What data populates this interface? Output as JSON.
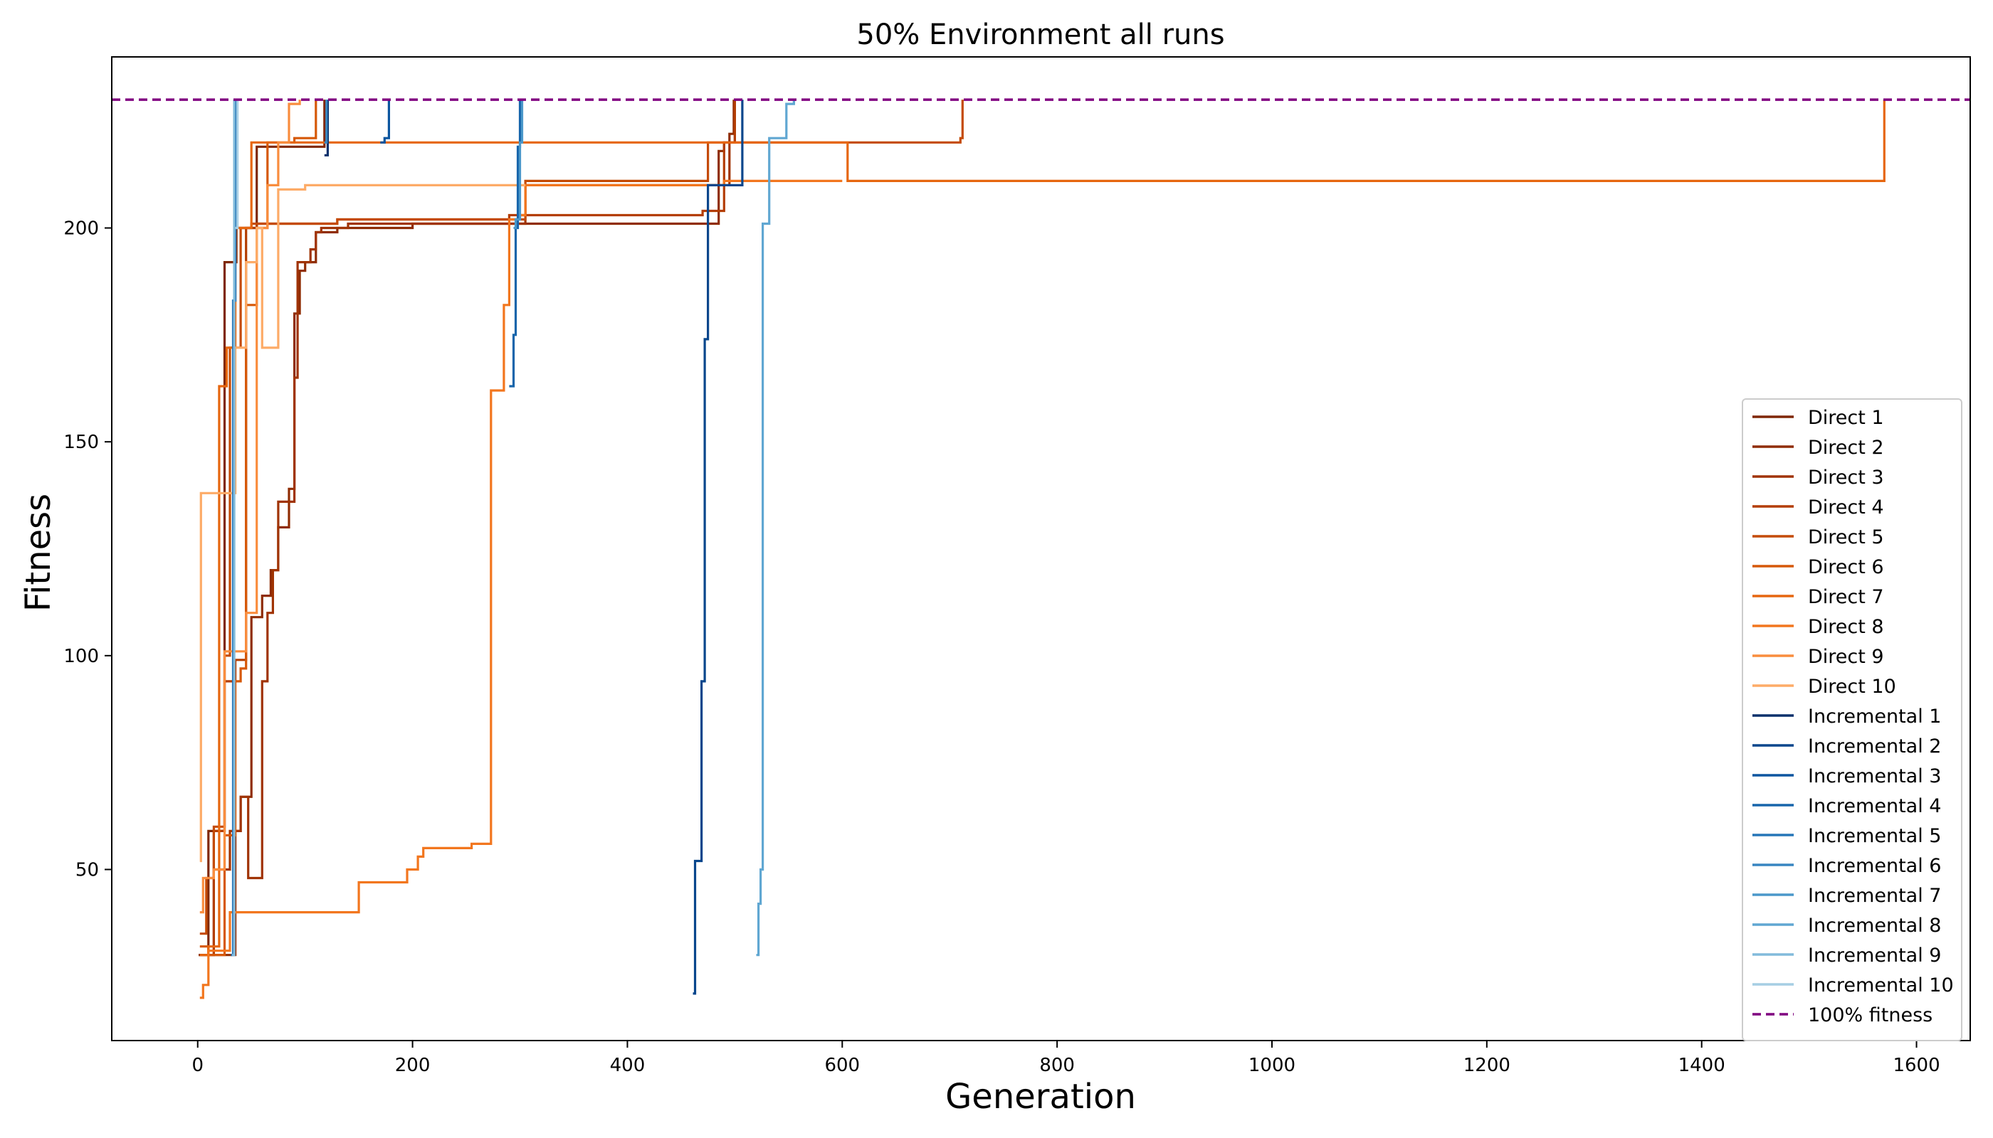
{
  "chart_data": {
    "type": "line",
    "title": "50% Environment all runs",
    "xlabel": "Generation",
    "ylabel": "Fitness",
    "xlim": [
      -80,
      1650
    ],
    "ylim": [
      10,
      240
    ],
    "xticks": [
      0,
      200,
      400,
      600,
      800,
      1000,
      1200,
      1400,
      1600
    ],
    "yticks": [
      50,
      100,
      150,
      200
    ],
    "grid": false,
    "legend_position": "lower-right",
    "reference_line": {
      "name": "100% fitness",
      "y": 230,
      "color": "#800080",
      "style": "dashed"
    },
    "series": [
      {
        "name": "Direct 1",
        "color": "#7f2704",
        "points": [
          [
            1,
            30
          ],
          [
            10,
            59
          ],
          [
            25,
            192
          ],
          [
            36,
            200
          ],
          [
            55,
            219
          ],
          [
            85,
            219
          ],
          [
            118,
            230
          ]
        ]
      },
      {
        "name": "Direct 2",
        "color": "#8f2c03",
        "points": [
          [
            1,
            30
          ],
          [
            20,
            30
          ],
          [
            35,
            59
          ],
          [
            40,
            67
          ],
          [
            50,
            109
          ],
          [
            60,
            114
          ],
          [
            68,
            120
          ],
          [
            75,
            130
          ],
          [
            85,
            139
          ],
          [
            90,
            180
          ],
          [
            95,
            190
          ],
          [
            100,
            192
          ],
          [
            110,
            199
          ],
          [
            130,
            200
          ],
          [
            200,
            201
          ],
          [
            480,
            201
          ],
          [
            485,
            218
          ],
          [
            490,
            220
          ],
          [
            495,
            222
          ],
          [
            499,
            230
          ]
        ]
      },
      {
        "name": "Direct 3",
        "color": "#a03303",
        "points": [
          [
            3,
            30
          ],
          [
            15,
            50
          ],
          [
            30,
            59
          ],
          [
            40,
            67
          ],
          [
            47,
            48
          ],
          [
            55,
            48
          ],
          [
            60,
            94
          ],
          [
            65,
            110
          ],
          [
            70,
            120
          ],
          [
            75,
            136
          ],
          [
            85,
            136
          ],
          [
            90,
            165
          ],
          [
            93,
            192
          ],
          [
            100,
            192
          ],
          [
            105,
            195
          ],
          [
            110,
            199
          ],
          [
            115,
            200
          ],
          [
            140,
            201
          ],
          [
            300,
            201
          ],
          [
            305,
            210
          ],
          [
            490,
            210
          ],
          [
            495,
            220
          ],
          [
            500,
            230
          ]
        ]
      },
      {
        "name": "Direct 4",
        "color": "#b33d02",
        "points": [
          [
            3,
            30
          ],
          [
            15,
            59
          ],
          [
            25,
            94
          ],
          [
            35,
            99
          ],
          [
            45,
            200
          ],
          [
            55,
            201
          ],
          [
            120,
            201
          ],
          [
            130,
            202
          ],
          [
            280,
            202
          ],
          [
            290,
            203
          ],
          [
            400,
            203
          ],
          [
            470,
            204
          ],
          [
            490,
            220
          ],
          [
            500,
            230
          ]
        ]
      },
      {
        "name": "Direct 5",
        "color": "#c44a04",
        "points": [
          [
            2,
            35
          ],
          [
            8,
            48
          ],
          [
            15,
            60
          ],
          [
            25,
            100
          ],
          [
            30,
            172
          ],
          [
            40,
            200
          ],
          [
            50,
            201
          ],
          [
            120,
            201
          ],
          [
            130,
            202
          ],
          [
            300,
            202
          ],
          [
            305,
            211
          ],
          [
            470,
            211
          ],
          [
            475,
            220
          ],
          [
            510,
            220
          ],
          [
            710,
            221
          ],
          [
            712,
            230
          ]
        ]
      },
      {
        "name": "Direct 6",
        "color": "#d65808",
        "points": [
          [
            2,
            32
          ],
          [
            10,
            30
          ],
          [
            25,
            58
          ],
          [
            35,
            94
          ],
          [
            40,
            97
          ],
          [
            45,
            182
          ],
          [
            55,
            200
          ],
          [
            65,
            220
          ],
          [
            90,
            221
          ],
          [
            100,
            221
          ],
          [
            110,
            230
          ]
        ]
      },
      {
        "name": "Direct 7",
        "color": "#e6660f",
        "points": [
          [
            2,
            30
          ],
          [
            10,
            32
          ],
          [
            20,
            163
          ],
          [
            27,
            172
          ],
          [
            35,
            200
          ],
          [
            50,
            220
          ],
          [
            600,
            220
          ],
          [
            605,
            211
          ],
          [
            1568,
            211
          ],
          [
            1570,
            230
          ]
        ]
      },
      {
        "name": "Direct 8",
        "color": "#f2761e",
        "points": [
          [
            2,
            20
          ],
          [
            5,
            23
          ],
          [
            10,
            31
          ],
          [
            30,
            40
          ],
          [
            145,
            40
          ],
          [
            150,
            47
          ],
          [
            190,
            47
          ],
          [
            195,
            50
          ],
          [
            205,
            53
          ],
          [
            210,
            55
          ],
          [
            250,
            55
          ],
          [
            255,
            56
          ],
          [
            270,
            56
          ],
          [
            273,
            162
          ],
          [
            280,
            162
          ],
          [
            285,
            182
          ],
          [
            290,
            202
          ],
          [
            300,
            203
          ],
          [
            305,
            210
          ],
          [
            490,
            211
          ],
          [
            600,
            211
          ]
        ]
      },
      {
        "name": "Direct 9",
        "color": "#f98d3e",
        "points": [
          [
            2,
            40
          ],
          [
            5,
            48
          ],
          [
            15,
            50
          ],
          [
            25,
            101
          ],
          [
            35,
            101
          ],
          [
            45,
            110
          ],
          [
            55,
            200
          ],
          [
            65,
            210
          ],
          [
            75,
            220
          ],
          [
            85,
            229
          ],
          [
            95,
            230
          ]
        ]
      },
      {
        "name": "Direct 10",
        "color": "#fdab67",
        "points": [
          [
            2,
            52
          ],
          [
            3,
            138
          ],
          [
            25,
            138
          ],
          [
            35,
            172
          ],
          [
            45,
            192
          ],
          [
            55,
            200
          ],
          [
            60,
            172
          ],
          [
            70,
            172
          ],
          [
            75,
            209
          ],
          [
            100,
            210
          ],
          [
            300,
            210
          ],
          [
            305,
            210
          ]
        ]
      },
      {
        "name": "Incremental 1",
        "color": "#08306b",
        "points": [
          [
            118,
            217
          ],
          [
            121,
            230
          ]
        ]
      },
      {
        "name": "Incremental 2",
        "color": "#08468c",
        "points": [
          [
            461,
            21
          ],
          [
            463,
            52
          ],
          [
            468,
            52
          ],
          [
            469,
            94
          ],
          [
            472,
            174
          ],
          [
            475,
            210
          ],
          [
            505,
            210
          ],
          [
            507,
            230
          ]
        ]
      },
      {
        "name": "Incremental 3",
        "color": "#0b559f",
        "points": [
          [
            170,
            220
          ],
          [
            174,
            221
          ],
          [
            176,
            221
          ],
          [
            178,
            230
          ]
        ]
      },
      {
        "name": "Incremental 4",
        "color": "#1765ab",
        "points": [
          [
            290,
            163
          ],
          [
            294,
            175
          ],
          [
            296,
            200
          ],
          [
            298,
            219
          ],
          [
            300,
            230
          ]
        ]
      },
      {
        "name": "Incremental 5",
        "color": "#2676b8",
        "points": [
          [
            31,
            30
          ],
          [
            33,
            183
          ],
          [
            35,
            230
          ]
        ]
      },
      {
        "name": "Incremental 6",
        "color": "#3886c1",
        "points": [
          [
            118,
            220
          ],
          [
            120,
            230
          ]
        ]
      },
      {
        "name": "Incremental 7",
        "color": "#4b98ca",
        "points": [
          [
            294,
            200
          ],
          [
            296,
            202
          ],
          [
            300,
            220
          ],
          [
            302,
            230
          ]
        ]
      },
      {
        "name": "Incremental 8",
        "color": "#60a7d2",
        "points": [
          [
            520,
            30
          ],
          [
            522,
            42
          ],
          [
            524,
            50
          ],
          [
            526,
            201
          ],
          [
            530,
            201
          ],
          [
            532,
            221
          ],
          [
            545,
            221
          ],
          [
            548,
            229
          ],
          [
            555,
            230
          ]
        ]
      },
      {
        "name": "Incremental 9",
        "color": "#82bbdb",
        "points": [
          [
            32,
            30
          ],
          [
            34,
            230
          ]
        ]
      },
      {
        "name": "Incremental 10",
        "color": "#a6cee4",
        "points": [
          [
            35,
            200
          ],
          [
            37,
            230
          ]
        ]
      }
    ]
  }
}
